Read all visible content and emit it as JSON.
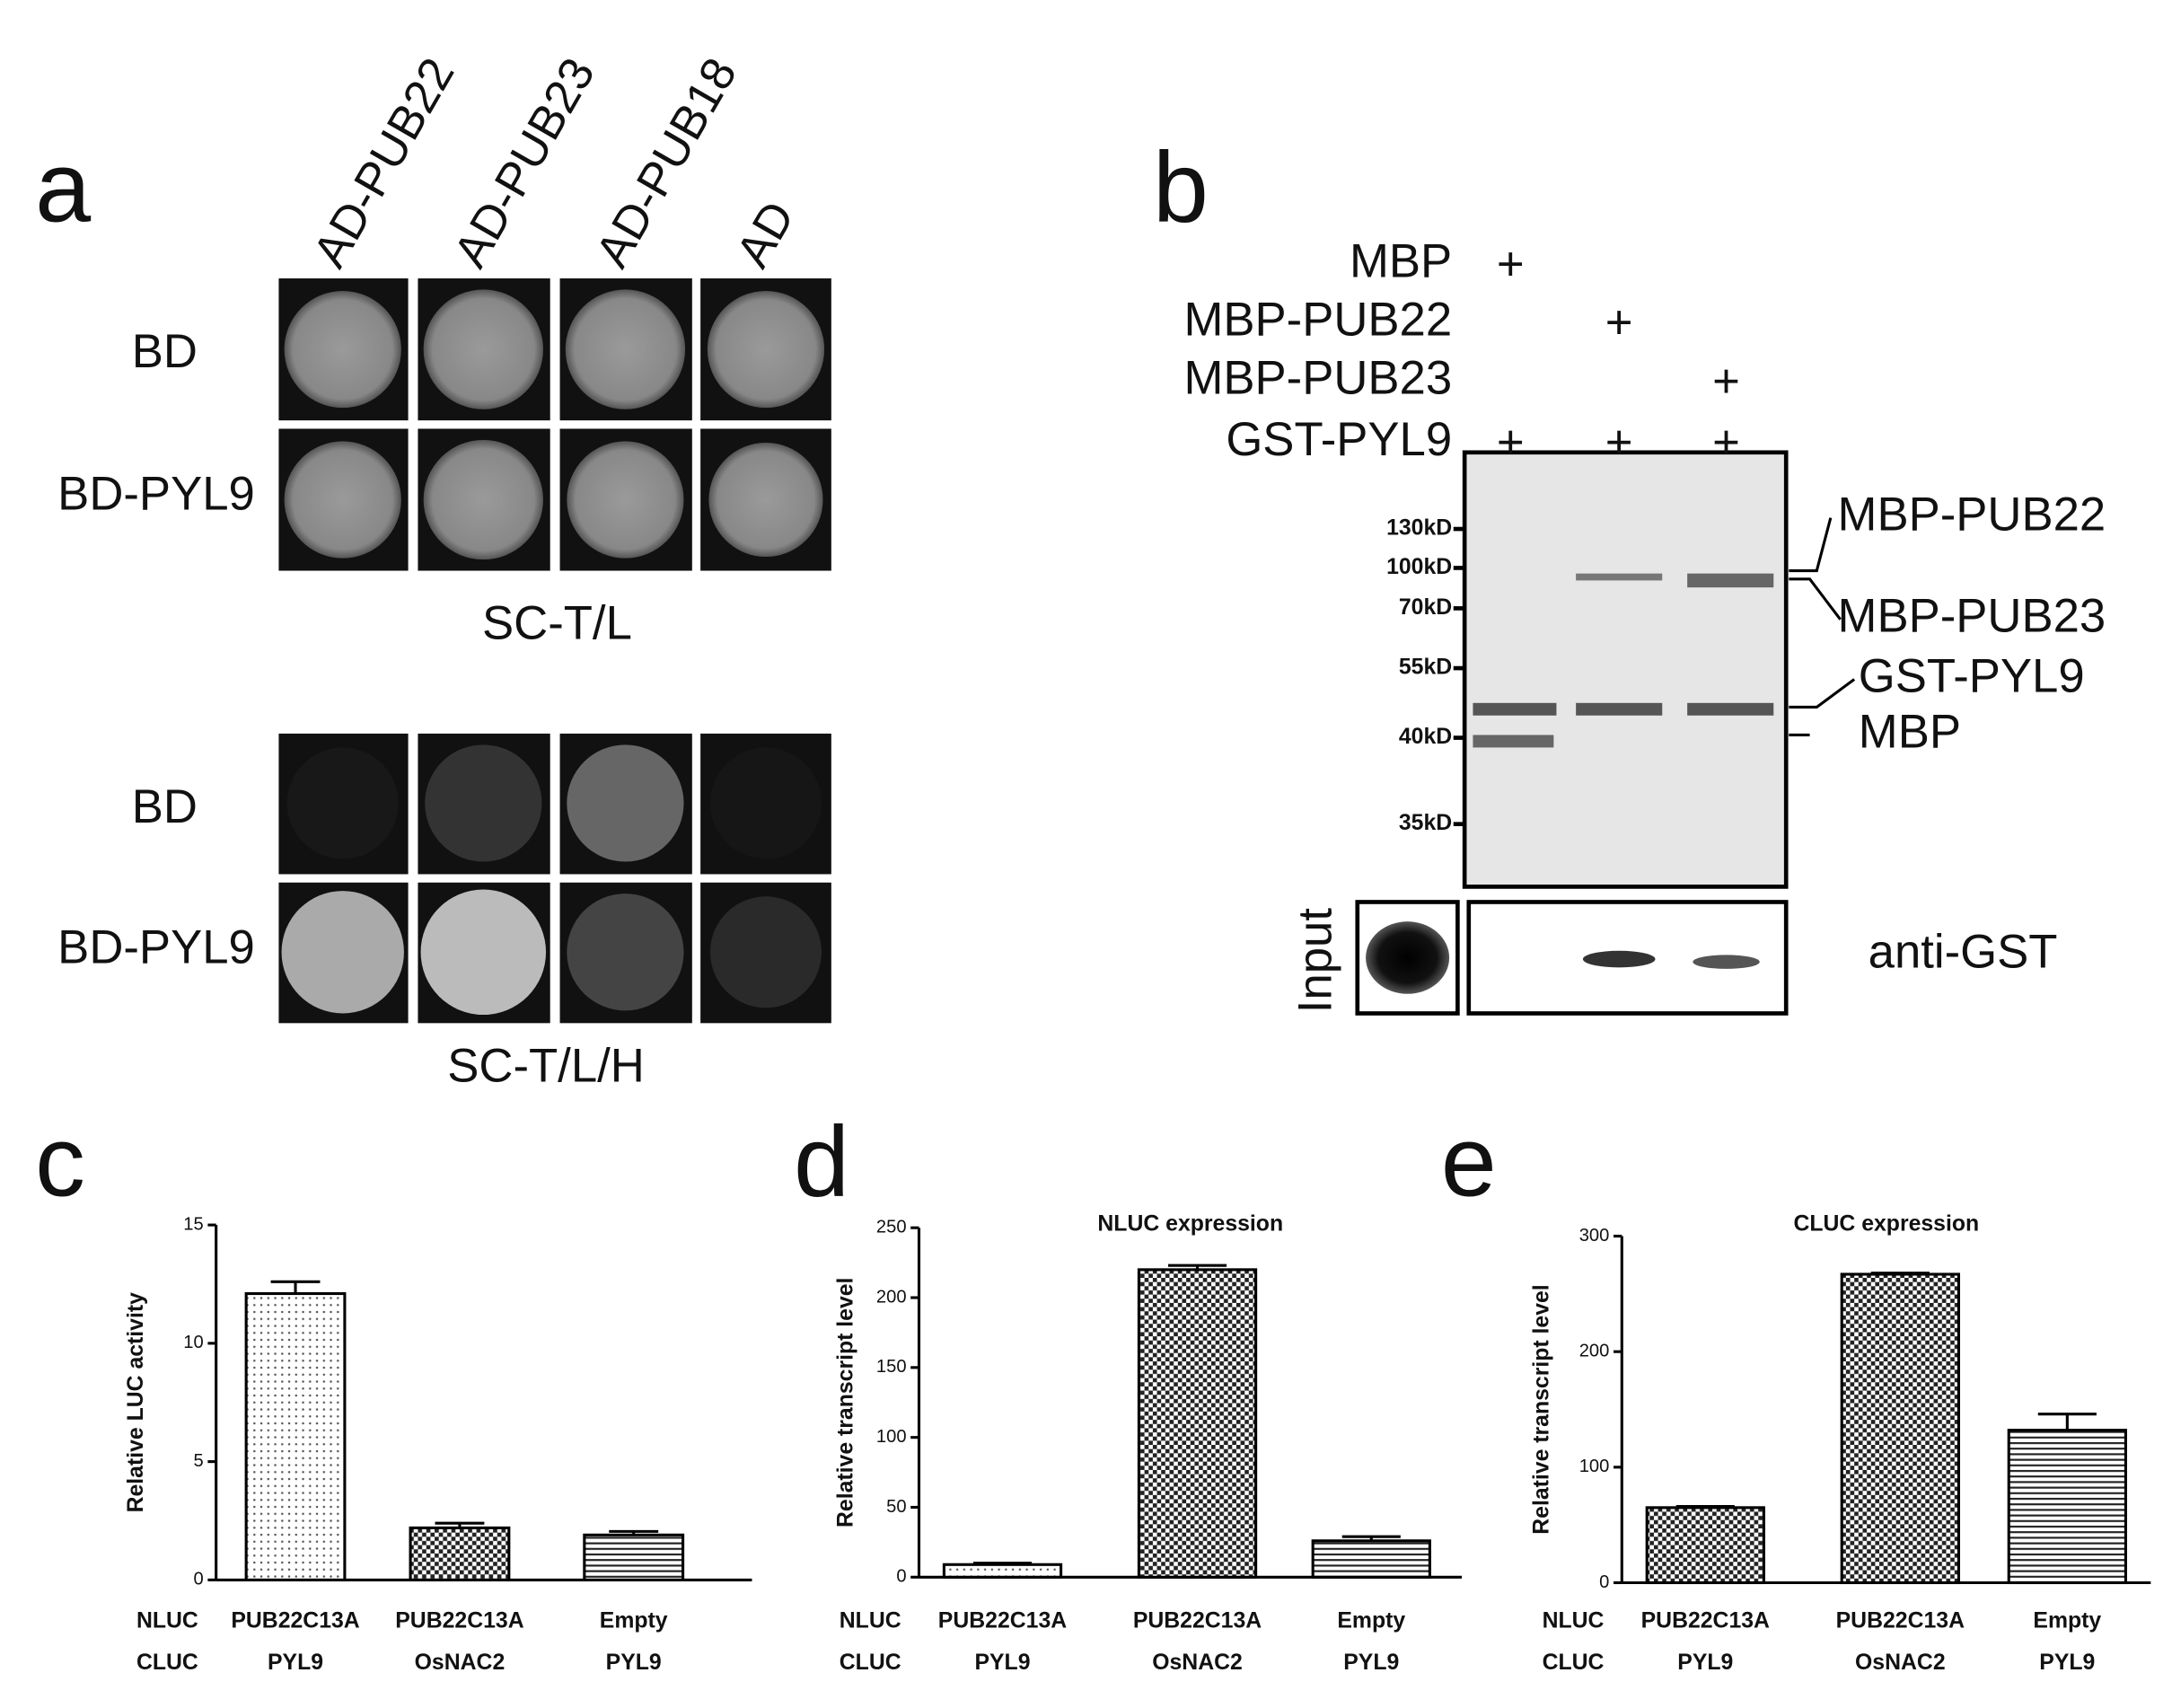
{
  "panel_a": {
    "letter": "a",
    "columns": [
      "AD-PUB22",
      "AD-PUB23",
      "AD-PUB18",
      "AD"
    ],
    "rows": [
      "BD",
      "BD-PYL9"
    ],
    "captions": [
      "SC-T/L",
      "SC-T/L/H"
    ]
  },
  "panel_b": {
    "letter": "b",
    "loading": [
      {
        "label": "MBP",
        "signs": [
          "+"
        ]
      },
      {
        "label": "MBP-PUB22",
        "signs": [
          "+"
        ]
      },
      {
        "label": "MBP-PUB23",
        "signs": [
          "+"
        ]
      },
      {
        "label": "GST-PYL9",
        "signs": [
          "+",
          "+",
          "+"
        ]
      }
    ],
    "markers": [
      "130kD",
      "100kD",
      "70kD",
      "55kD",
      "40kD",
      "35kD"
    ],
    "bands": [
      "MBP-PUB22",
      "MBP-PUB23",
      "GST-PYL9",
      "MBP"
    ],
    "input_label": "Input",
    "blot_label": "anti-GST"
  },
  "chart_data": [
    {
      "type": "bar",
      "panel_label": "c",
      "ylabel": "Relative LUC activity",
      "row_labels": [
        "NLUC",
        "CLUC"
      ],
      "categories": [
        [
          "PUB22C13A",
          "PYL9"
        ],
        [
          "PUB22C13A",
          "OsNAC2"
        ],
        [
          "Empty",
          "PYL9"
        ]
      ],
      "values": [
        12.1,
        2.2,
        1.9
      ],
      "errors": [
        0.5,
        0.2,
        0.15
      ],
      "patterns": [
        "dots",
        "checker",
        "hlines"
      ],
      "ylim": [
        0,
        15
      ],
      "yticks": [
        0,
        5,
        10,
        15
      ]
    },
    {
      "type": "bar",
      "panel_label": "d",
      "title": "NLUC expression",
      "ylabel": "Relative transcript level",
      "row_labels": [
        "NLUC",
        "CLUC"
      ],
      "categories": [
        [
          "PUB22C13A",
          "PYL9"
        ],
        [
          "PUB22C13A",
          "OsNAC2"
        ],
        [
          "Empty",
          "PYL9"
        ]
      ],
      "values": [
        9,
        220,
        26
      ],
      "errors": [
        1,
        3,
        3
      ],
      "patterns": [
        "dots",
        "checker",
        "hlines"
      ],
      "ylim": [
        0,
        250
      ],
      "yticks": [
        0,
        50,
        100,
        150,
        200,
        250
      ]
    },
    {
      "type": "bar",
      "panel_label": "e",
      "title": "CLUC expression",
      "ylabel": "Relative transcript level",
      "row_labels": [
        "NLUC",
        "CLUC"
      ],
      "categories": [
        [
          "PUB22C13A",
          "PYL9"
        ],
        [
          "PUB22C13A",
          "OsNAC2"
        ],
        [
          "Empty",
          "PYL9"
        ]
      ],
      "values": [
        65,
        267,
        132
      ],
      "errors": [
        1,
        1,
        14
      ],
      "patterns": [
        "checker",
        "checker",
        "hlines"
      ],
      "ylim": [
        0,
        300
      ],
      "yticks": [
        0,
        100,
        200,
        300
      ]
    }
  ]
}
